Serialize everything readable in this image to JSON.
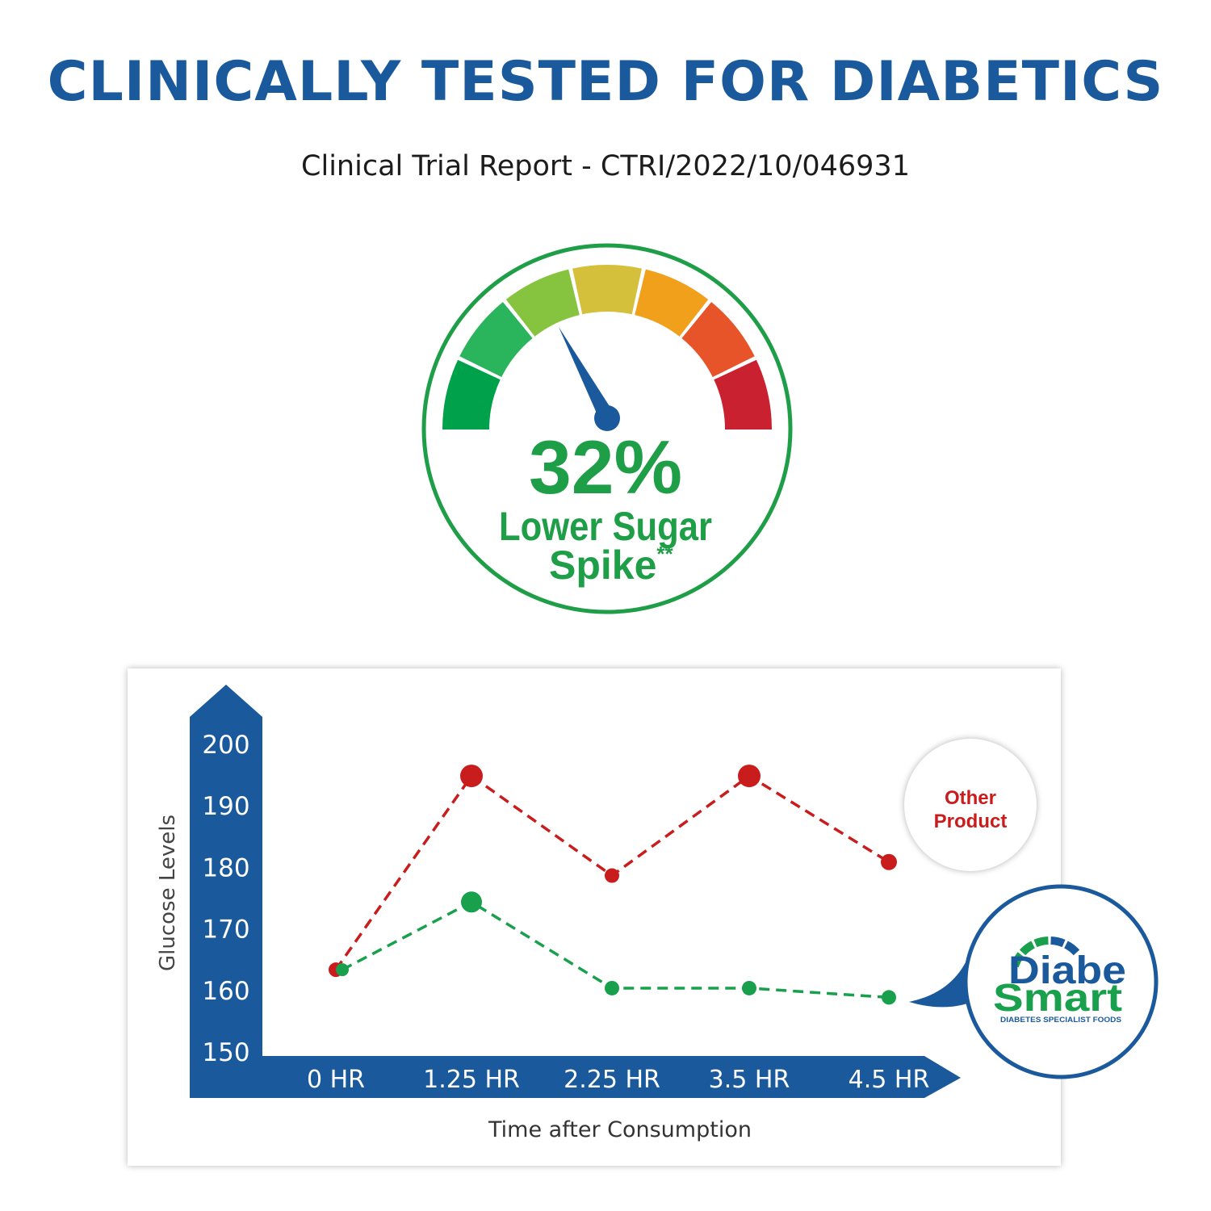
{
  "header": {
    "title": "CLINICALLY TESTED FOR DIABETICS",
    "subtitle": "Clinical Trial Report - CTRI/2022/10/046931"
  },
  "gauge": {
    "percent_label": "32%",
    "caption_line1": "Lower Sugar",
    "caption_line2": "Spike",
    "footnote_mark": "**",
    "segment_colors": [
      "#00a14b",
      "#2ab45b",
      "#86c440",
      "#d4c03a",
      "#f1a01c",
      "#e8542a",
      "#c92130"
    ],
    "needle_color": "#1a5a9c",
    "ring_color": "#1e9e47"
  },
  "brand": {
    "name_part1": "Diabe",
    "name_part2": "Smart",
    "tagline": "DIABETES SPECIALIST FOODS"
  },
  "colors": {
    "axis": "#1a5a9c",
    "other_product": "#c91c1c",
    "diabesmart": "#18a04c"
  },
  "chart_data": {
    "type": "line",
    "xlabel": "Time after Consumption",
    "ylabel": "Glucose Levels",
    "ylim": [
      150,
      200
    ],
    "yticks": [
      200,
      190,
      180,
      170,
      160,
      150
    ],
    "categories": [
      "0 HR",
      "1.25 HR",
      "2.25 HR",
      "3.5 HR",
      "4.5 HR"
    ],
    "series": [
      {
        "name": "Other Product",
        "label_line1": "Other",
        "label_line2": "Product",
        "color": "#c91c1c",
        "values": [
          163.5,
          195,
          178.8,
          195,
          181
        ]
      },
      {
        "name": "DiabeSmart",
        "color": "#18a04c",
        "values": [
          163.5,
          174.5,
          160.5,
          160.5,
          159
        ]
      }
    ],
    "legend_position": "right",
    "grid": false
  }
}
